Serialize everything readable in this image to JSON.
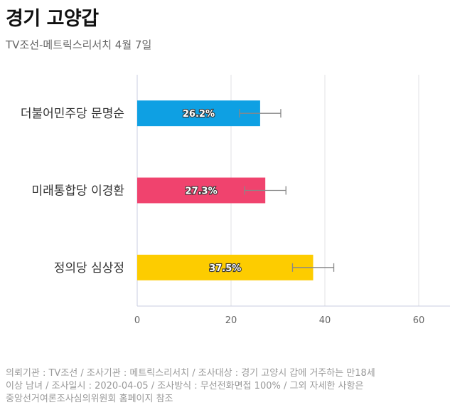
{
  "title": "경기 고양갑",
  "subtitle": "TV조선-메트릭스리서치 4월 7일",
  "chart_data": {
    "type": "bar",
    "orientation": "horizontal",
    "categories": [
      "더불어민주당 문명순",
      "미래통합당 이경환",
      "정의당 심상정"
    ],
    "values": [
      26.2,
      27.3,
      37.5
    ],
    "value_labels": [
      "26.2%",
      "27.3%",
      "37.5%"
    ],
    "error_ranges": [
      [
        21.8,
        30.6
      ],
      [
        22.9,
        31.7
      ],
      [
        33.1,
        41.9
      ]
    ],
    "colors": [
      "#0ea0e3",
      "#f0436e",
      "#fdcc00"
    ],
    "xlim": [
      0,
      65
    ],
    "xticks": [
      0,
      20,
      40,
      60
    ],
    "grid": true
  },
  "footer": {
    "lines": [
      "의뢰기관 : TV조선 / 조사기관 : 메트릭스리서치 / 조사대상 : 경기 고양시 갑에 거주하는 만18세",
      "이상 남녀 / 조사일시 : 2020-04-05 / 조사방식 : 무선전화면접 100% / 그외 자세한 사항은",
      "중앙선거여론조사심의위원회 홈페이지 참조"
    ]
  }
}
